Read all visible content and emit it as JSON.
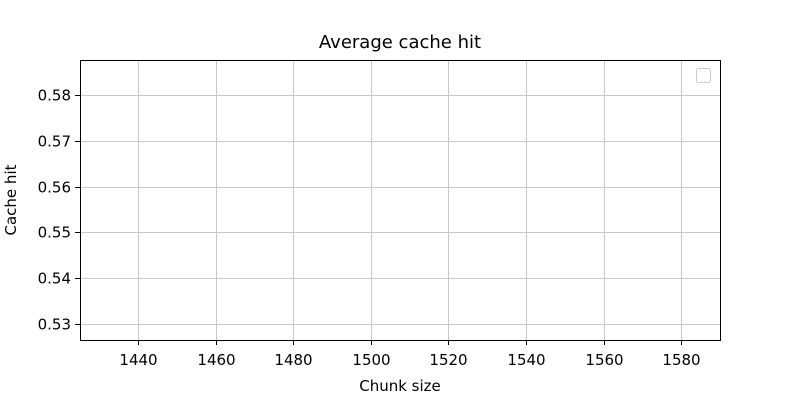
{
  "chart_data": {
    "type": "line",
    "title": "Average cache hit",
    "xlabel": "Chunk size",
    "ylabel": "Cache hit",
    "xlim": [
      1425,
      1590
    ],
    "ylim": [
      0.5265,
      0.5877
    ],
    "xticks": [
      1440,
      1460,
      1480,
      1500,
      1520,
      1540,
      1560,
      1580
    ],
    "yticks": [
      0.53,
      0.54,
      0.55,
      0.56,
      0.57,
      0.58
    ],
    "xtick_labels": [
      "1440",
      "1460",
      "1480",
      "1500",
      "1520",
      "1540",
      "1560",
      "1580"
    ],
    "ytick_labels": [
      "0.53",
      "0.54",
      "0.55",
      "0.56",
      "0.57",
      "0.58"
    ],
    "grid": true,
    "legend": {
      "placement": "top-right",
      "entries": []
    },
    "series": []
  }
}
